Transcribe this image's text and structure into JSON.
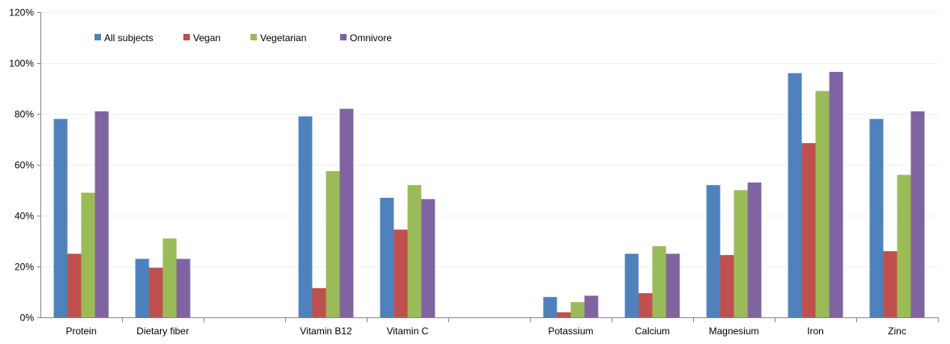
{
  "chart_data": {
    "type": "bar",
    "title": "",
    "xlabel": "",
    "ylabel": "",
    "ylim": [
      0,
      120
    ],
    "y_ticks": [
      0,
      20,
      40,
      60,
      80,
      100,
      120
    ],
    "y_tick_labels": [
      "0%",
      "20%",
      "40%",
      "60%",
      "80%",
      "100%",
      "120%"
    ],
    "legend_position": "top-left",
    "grid": true,
    "categories": [
      "Protein",
      "Dietary fiber",
      "",
      "Vitamin B12",
      "Vitamin C",
      "",
      "Potassium",
      "Calcium",
      "Magnesium",
      "Iron",
      "Zinc"
    ],
    "series": [
      {
        "name": "All subjects",
        "color": "#4F81BD",
        "values": [
          78,
          23,
          null,
          79,
          47,
          null,
          8,
          25,
          52,
          96,
          78
        ]
      },
      {
        "name": "Vegan",
        "color": "#C0504D",
        "values": [
          25,
          19.5,
          null,
          11.5,
          34.5,
          null,
          2,
          9.5,
          24.5,
          68.5,
          26
        ]
      },
      {
        "name": "Vegetarian",
        "color": "#9BBB59",
        "values": [
          49,
          31,
          null,
          57.5,
          52,
          null,
          6,
          28,
          50,
          89,
          56
        ]
      },
      {
        "name": "Omnivore",
        "color": "#8064A2",
        "values": [
          81,
          23,
          null,
          82,
          46.5,
          null,
          8.5,
          25,
          53,
          96.5,
          81
        ]
      }
    ]
  }
}
